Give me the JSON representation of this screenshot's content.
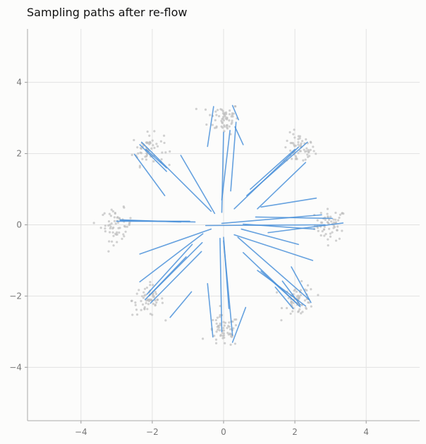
{
  "chart_data": {
    "type": "scatter",
    "title": "Sampling paths after re-flow",
    "xlabel": "",
    "ylabel": "",
    "xlim": [
      -5.5,
      5.5
    ],
    "ylim": [
      -5.5,
      5.5
    ],
    "grid": true,
    "x_ticks": [
      -4,
      -2,
      0,
      2,
      4
    ],
    "y_ticks": [
      -4,
      -2,
      0,
      2,
      4
    ],
    "tick_labels": {
      "x": [
        "−4",
        "−2",
        "0",
        "2",
        "4"
      ],
      "y": [
        "−4",
        "−2",
        "0",
        "2",
        "4"
      ]
    },
    "cluster_centers": [
      [
        3.0,
        0.0
      ],
      [
        2.12,
        2.12
      ],
      [
        0.0,
        3.0
      ],
      [
        -2.12,
        2.12
      ],
      [
        -3.0,
        0.0
      ],
      [
        -2.12,
        -2.12
      ],
      [
        0.0,
        -3.0
      ],
      [
        2.12,
        -2.12
      ]
    ],
    "cluster_spread": 0.22,
    "points_per_cluster": 60,
    "paths": [
      [
        [
          2.75,
          0.28
        ],
        [
          -0.05,
          0.04
        ]
      ],
      [
        [
          3.35,
          0.05
        ],
        [
          1.25,
          -0.22
        ]
      ],
      [
        [
          2.85,
          0.0
        ],
        [
          -0.5,
          -0.02
        ]
      ],
      [
        [
          3.05,
          0.18
        ],
        [
          0.9,
          0.22
        ]
      ],
      [
        [
          2.55,
          -0.12
        ],
        [
          0.55,
          0.02
        ]
      ],
      [
        [
          2.6,
          0.75
        ],
        [
          1.05,
          0.5
        ]
      ],
      [
        [
          2.3,
          1.75
        ],
        [
          0.95,
          0.45
        ]
      ],
      [
        [
          2.1,
          2.18
        ],
        [
          0.3,
          0.45
        ]
      ],
      [
        [
          2.35,
          2.32
        ],
        [
          0.65,
          0.82
        ]
      ],
      [
        [
          2.0,
          2.12
        ],
        [
          0.75,
          1.0
        ]
      ],
      [
        [
          0.35,
          2.88
        ],
        [
          0.2,
          0.95
        ]
      ],
      [
        [
          0.18,
          2.65
        ],
        [
          -0.05,
          0.7
        ]
      ],
      [
        [
          0.0,
          2.6
        ],
        [
          -0.05,
          0.35
        ]
      ],
      [
        [
          0.55,
          2.25
        ],
        [
          0.32,
          2.75
        ]
      ],
      [
        [
          -0.28,
          3.32
        ],
        [
          -0.45,
          2.2
        ]
      ],
      [
        [
          0.25,
          3.35
        ],
        [
          0.42,
          2.95
        ]
      ],
      [
        [
          -2.3,
          2.32
        ],
        [
          -0.35,
          0.38
        ]
      ],
      [
        [
          -2.35,
          2.25
        ],
        [
          -1.6,
          1.5
        ]
      ],
      [
        [
          -2.18,
          2.12
        ],
        [
          -1.6,
          1.6
        ]
      ],
      [
        [
          -2.5,
          1.98
        ],
        [
          -1.65,
          0.82
        ]
      ],
      [
        [
          -1.2,
          1.95
        ],
        [
          -0.25,
          0.32
        ]
      ],
      [
        [
          -2.9,
          0.12
        ],
        [
          -0.8,
          0.08
        ]
      ],
      [
        [
          -3.0,
          0.1
        ],
        [
          -0.95,
          0.1
        ]
      ],
      [
        [
          -2.9,
          0.14
        ],
        [
          -1.2,
          0.08
        ]
      ],
      [
        [
          -2.35,
          -1.6
        ],
        [
          -0.58,
          -0.25
        ]
      ],
      [
        [
          -2.35,
          -0.82
        ],
        [
          -0.35,
          -0.12
        ]
      ],
      [
        [
          -2.15,
          -1.95
        ],
        [
          -0.88,
          -0.55
        ]
      ],
      [
        [
          -2.1,
          -2.0
        ],
        [
          -1.05,
          -0.9
        ]
      ],
      [
        [
          -2.05,
          -2.2
        ],
        [
          -0.62,
          -0.75
        ]
      ],
      [
        [
          -2.2,
          -2.1
        ],
        [
          -0.6,
          -0.5
        ]
      ],
      [
        [
          -1.5,
          -2.6
        ],
        [
          -0.9,
          -1.88
        ]
      ],
      [
        [
          -0.05,
          -3.0
        ],
        [
          -0.1,
          -0.38
        ]
      ],
      [
        [
          -0.3,
          -3.15
        ],
        [
          -0.45,
          -1.65
        ]
      ],
      [
        [
          0.25,
          -3.1
        ],
        [
          0.0,
          -0.45
        ]
      ],
      [
        [
          0.25,
          -3.3
        ],
        [
          0.62,
          -2.32
        ]
      ],
      [
        [
          0.15,
          -2.35
        ],
        [
          0.0,
          -0.35
        ]
      ],
      [
        [
          2.4,
          -2.1
        ],
        [
          0.4,
          -0.35
        ]
      ],
      [
        [
          2.15,
          -2.3
        ],
        [
          0.55,
          -0.78
        ]
      ],
      [
        [
          2.3,
          -2.28
        ],
        [
          0.95,
          -1.28
        ]
      ],
      [
        [
          2.05,
          -2.2
        ],
        [
          1.05,
          -1.3
        ]
      ],
      [
        [
          2.45,
          -2.18
        ],
        [
          1.9,
          -1.18
        ]
      ],
      [
        [
          2.15,
          -2.25
        ],
        [
          1.65,
          -1.58
        ]
      ],
      [
        [
          1.95,
          -2.35
        ],
        [
          1.45,
          -1.75
        ]
      ],
      [
        [
          2.5,
          -1.0
        ],
        [
          0.3,
          -0.28
        ]
      ],
      [
        [
          2.1,
          -0.55
        ],
        [
          0.5,
          -0.12
        ]
      ]
    ]
  }
}
